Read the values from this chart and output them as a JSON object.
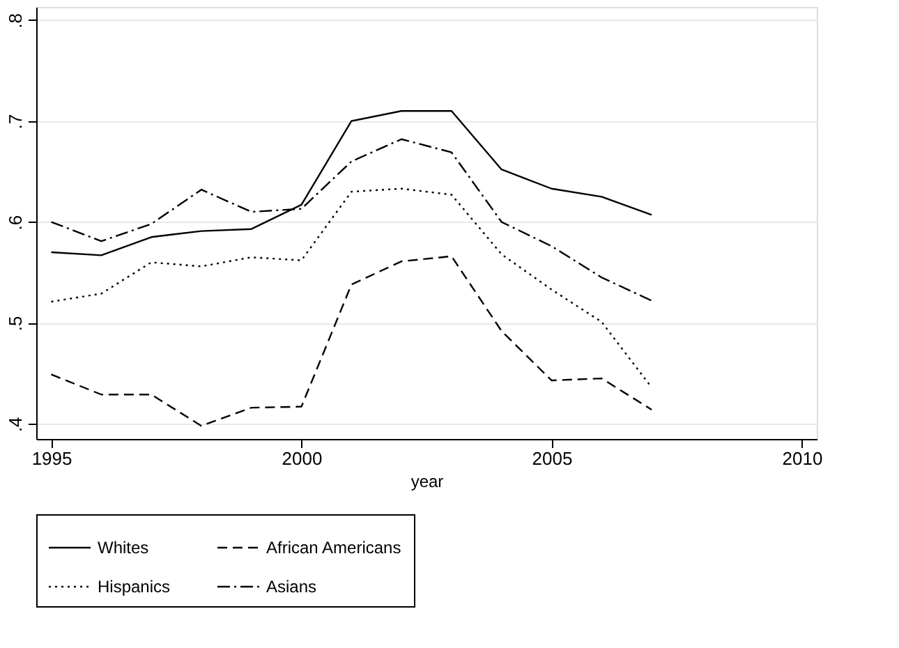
{
  "chart_data": {
    "type": "line",
    "xlabel": "year",
    "x": [
      1995,
      1996,
      1997,
      1998,
      1999,
      2000,
      2001,
      2002,
      2003,
      2004,
      2005,
      2006,
      2007
    ],
    "series": [
      {
        "name": "Whites",
        "color": "#000000",
        "line_style": "solid",
        "values": [
          0.57,
          0.567,
          0.585,
          0.591,
          0.593,
          0.617,
          0.7,
          0.71,
          0.71,
          0.652,
          0.633,
          0.625,
          0.607
        ]
      },
      {
        "name": "African Americans",
        "color": "#000000",
        "line_style": "dashed",
        "values": [
          0.449,
          0.429,
          0.429,
          0.398,
          0.416,
          0.417,
          0.538,
          0.561,
          0.566,
          0.492,
          0.443,
          0.445,
          0.414
        ]
      },
      {
        "name": "Hispanics",
        "color": "#000000",
        "line_style": "dotted",
        "values": [
          0.521,
          0.529,
          0.56,
          0.556,
          0.565,
          0.562,
          0.63,
          0.633,
          0.627,
          0.568,
          0.533,
          0.501,
          0.436
        ]
      },
      {
        "name": "Asians",
        "color": "#000000",
        "line_style": "dashdot",
        "values": [
          0.6,
          0.581,
          0.598,
          0.632,
          0.61,
          0.613,
          0.66,
          0.682,
          0.669,
          0.6,
          0.576,
          0.545,
          0.522
        ]
      }
    ],
    "xlim": [
      1994.7,
      2010.3
    ],
    "xticks": [
      1995,
      2000,
      2005,
      2010
    ],
    "ylim": [
      0.385,
      0.813
    ],
    "yticks": [
      {
        "value": 0.4,
        "label": ".4"
      },
      {
        "value": 0.5,
        "label": ".5"
      },
      {
        "value": 0.6,
        "label": ".6"
      },
      {
        "value": 0.7,
        "label": ".7"
      },
      {
        "value": 0.8,
        "label": ".8"
      }
    ],
    "grid": "y",
    "legend": "bottom",
    "marker": "none"
  }
}
